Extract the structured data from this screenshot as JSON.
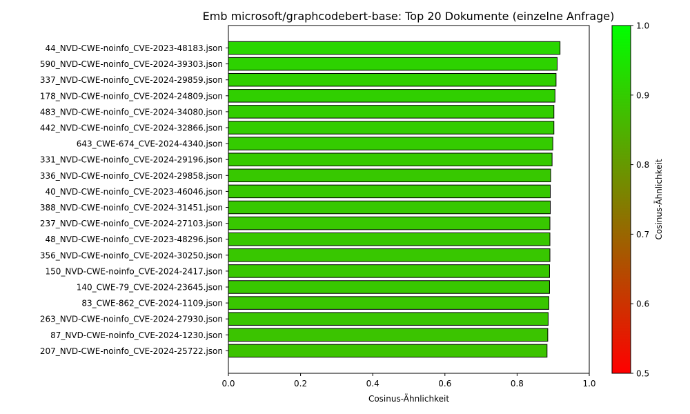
{
  "chart_data": {
    "type": "bar",
    "orientation": "horizontal",
    "title": "Emb microsoft/graphcodebert-base: Top 20 Dokumente (einzelne Anfrage)",
    "xlabel": "Cosinus-Ähnlichkeit",
    "ylabel": "",
    "xlim": [
      0.0,
      1.0
    ],
    "xticks": [
      "0.0",
      "0.2",
      "0.4",
      "0.6",
      "0.8",
      "1.0"
    ],
    "categories": [
      "44_NVD-CWE-noinfo_CVE-2023-48183.json",
      "590_NVD-CWE-noinfo_CVE-2024-39303.json",
      "337_NVD-CWE-noinfo_CVE-2024-29859.json",
      "178_NVD-CWE-noinfo_CVE-2024-24809.json",
      "483_NVD-CWE-noinfo_CVE-2024-34080.json",
      "442_NVD-CWE-noinfo_CVE-2024-32866.json",
      "643_CWE-674_CVE-2024-4340.json",
      "331_NVD-CWE-noinfo_CVE-2024-29196.json",
      "336_NVD-CWE-noinfo_CVE-2024-29858.json",
      "40_NVD-CWE-noinfo_CVE-2023-46046.json",
      "388_NVD-CWE-noinfo_CVE-2024-31451.json",
      "237_NVD-CWE-noinfo_CVE-2024-27103.json",
      "48_NVD-CWE-noinfo_CVE-2023-48296.json",
      "356_NVD-CWE-noinfo_CVE-2024-30250.json",
      "150_NVD-CWE-noinfo_CVE-2024-2417.json",
      "140_CWE-79_CVE-2024-23645.json",
      "83_CWE-862_CVE-2024-1109.json",
      "263_NVD-CWE-noinfo_CVE-2024-27930.json",
      "87_NVD-CWE-noinfo_CVE-2024-1230.json",
      "207_NVD-CWE-noinfo_CVE-2024-25722.json"
    ],
    "values": [
      0.919,
      0.911,
      0.908,
      0.905,
      0.902,
      0.902,
      0.899,
      0.897,
      0.893,
      0.892,
      0.892,
      0.891,
      0.891,
      0.891,
      0.89,
      0.89,
      0.888,
      0.886,
      0.885,
      0.883
    ],
    "colorbar": {
      "label": "Cosinus-Ähnlichkeit",
      "range": [
        0.5,
        1.0
      ],
      "ticks": [
        "0.5",
        "0.6",
        "0.7",
        "0.8",
        "0.9",
        "1.0"
      ],
      "color_low": "#ff0000",
      "color_high": "#00ff00"
    },
    "bar_edge_color": "#000000",
    "grid": false,
    "legend": "none"
  }
}
